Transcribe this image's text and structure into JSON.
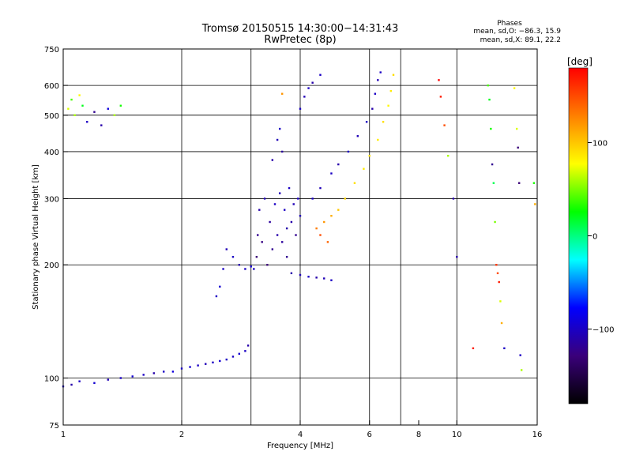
{
  "chart_data": {
    "type": "scatter",
    "title": "Tromsø 20150515 14:30:00−14:31:43",
    "subtitle": "RwPretec (8p)",
    "stats_title": "Phases",
    "stats_line1": "mean, sd,O: −86.3, 15.9",
    "stats_line2": "mean, sd,X:  89.1, 22.2",
    "xlabel": "Frequency [MHz]",
    "ylabel": "Stationary phase Virtual Height [km]",
    "x_scale": "log",
    "y_scale": "log",
    "xlim": [
      1,
      16
    ],
    "ylim": [
      75,
      750
    ],
    "x_ticks": [
      1,
      2,
      4,
      6,
      8,
      10,
      16
    ],
    "x_tick_labels": [
      "1",
      "2",
      "4",
      "6",
      "8",
      "10",
      "16"
    ],
    "y_ticks": [
      75,
      100,
      200,
      300,
      400,
      500,
      600,
      750
    ],
    "y_tick_labels": [
      "75",
      "100",
      "200",
      "300",
      "400",
      "500",
      "600",
      "750"
    ],
    "x_grid": [
      2,
      3,
      4,
      6,
      7.2,
      10
    ],
    "y_grid": [
      100,
      200,
      300,
      400,
      500,
      600
    ],
    "colorbar": {
      "label": "[deg]",
      "range": [
        -180,
        180
      ],
      "ticks": [
        100,
        0,
        -100
      ],
      "tick_labels": [
        "100",
        "0",
        "−100"
      ]
    },
    "color_stops": [
      "#000000",
      "#3a007a",
      "#0000ff",
      "#00ffff",
      "#00ff00",
      "#ffff00",
      "#ff8000",
      "#ff0000"
    ],
    "series": [
      {
        "points": [
          [
            1.0,
            95,
            -100
          ],
          [
            1.05,
            96,
            -110
          ],
          [
            1.1,
            98,
            -100
          ],
          [
            1.2,
            97,
            -95
          ],
          [
            1.3,
            99,
            -105
          ],
          [
            1.4,
            100,
            -100
          ],
          [
            1.5,
            101,
            -95
          ],
          [
            1.6,
            102,
            -100
          ],
          [
            1.7,
            103,
            -110
          ],
          [
            1.8,
            104,
            -100
          ],
          [
            1.9,
            104,
            -90
          ],
          [
            2.0,
            106,
            -100
          ],
          [
            2.1,
            107,
            -95
          ],
          [
            2.2,
            108,
            -100
          ],
          [
            2.3,
            109,
            -105
          ],
          [
            2.4,
            110,
            -100
          ],
          [
            2.5,
            111,
            -95
          ],
          [
            2.6,
            112,
            -100
          ],
          [
            2.7,
            114,
            -100
          ],
          [
            2.8,
            116,
            -95
          ],
          [
            2.9,
            118,
            -100
          ],
          [
            2.95,
            122,
            -110
          ]
        ]
      },
      {
        "points": [
          [
            1.03,
            520,
            70
          ],
          [
            1.05,
            550,
            40
          ],
          [
            1.07,
            500,
            60
          ],
          [
            1.1,
            565,
            80
          ],
          [
            1.12,
            530,
            20
          ],
          [
            1.15,
            480,
            -100
          ],
          [
            1.2,
            510,
            -120
          ],
          [
            1.25,
            470,
            -110
          ],
          [
            1.3,
            520,
            -90
          ],
          [
            1.35,
            500,
            60
          ],
          [
            1.4,
            530,
            30
          ]
        ]
      },
      {
        "points": [
          [
            2.45,
            165,
            -100
          ],
          [
            2.5,
            175,
            -95
          ],
          [
            2.55,
            195,
            -100
          ],
          [
            2.6,
            220,
            -105
          ],
          [
            2.7,
            210,
            -100
          ],
          [
            2.8,
            200,
            -110
          ],
          [
            2.9,
            195,
            -100
          ],
          [
            3.0,
            198,
            -95
          ],
          [
            3.05,
            195,
            -100
          ]
        ]
      },
      {
        "points": [
          [
            3.1,
            210,
            -130
          ],
          [
            3.12,
            240,
            -120
          ],
          [
            3.15,
            280,
            -110
          ],
          [
            3.2,
            230,
            -125
          ],
          [
            3.25,
            300,
            -105
          ],
          [
            3.3,
            200,
            -130
          ],
          [
            3.35,
            260,
            -115
          ],
          [
            3.4,
            220,
            -120
          ],
          [
            3.45,
            290,
            -100
          ],
          [
            3.5,
            240,
            -110
          ],
          [
            3.55,
            310,
            -105
          ],
          [
            3.6,
            230,
            -115
          ],
          [
            3.65,
            280,
            -100
          ],
          [
            3.7,
            250,
            -110
          ],
          [
            3.75,
            320,
            -100
          ],
          [
            3.8,
            260,
            -110
          ],
          [
            3.85,
            290,
            -105
          ],
          [
            3.9,
            240,
            -120
          ],
          [
            3.95,
            300,
            -100
          ],
          [
            4.0,
            270,
            -105
          ]
        ]
      },
      {
        "points": [
          [
            3.4,
            380,
            -110
          ],
          [
            3.5,
            430,
            -105
          ],
          [
            3.55,
            460,
            -100
          ],
          [
            3.6,
            400,
            -115
          ],
          [
            3.7,
            210,
            -120
          ],
          [
            3.8,
            190,
            -110
          ],
          [
            4.0,
            188,
            -105
          ],
          [
            4.2,
            186,
            -100
          ],
          [
            4.4,
            185,
            -110
          ],
          [
            4.6,
            184,
            -105
          ],
          [
            4.8,
            182,
            -100
          ]
        ]
      },
      {
        "points": [
          [
            4.0,
            520,
            -100
          ],
          [
            4.1,
            560,
            -105
          ],
          [
            4.2,
            590,
            -100
          ],
          [
            4.3,
            610,
            -110
          ],
          [
            4.5,
            640,
            -100
          ],
          [
            3.6,
            570,
            120
          ]
        ]
      },
      {
        "points": [
          [
            4.3,
            300,
            -100
          ],
          [
            4.5,
            320,
            -105
          ],
          [
            4.8,
            350,
            -100
          ],
          [
            5.0,
            370,
            -110
          ],
          [
            5.3,
            400,
            -100
          ],
          [
            5.6,
            440,
            -105
          ],
          [
            5.9,
            480,
            -100
          ],
          [
            6.1,
            520,
            -110
          ],
          [
            6.2,
            570,
            -100
          ],
          [
            6.3,
            620,
            -105
          ],
          [
            6.4,
            650,
            -100
          ]
        ]
      },
      {
        "points": [
          [
            4.4,
            250,
            130
          ],
          [
            4.5,
            240,
            150
          ],
          [
            4.6,
            260,
            120
          ],
          [
            4.7,
            230,
            140
          ],
          [
            4.8,
            270,
            110
          ],
          [
            5.0,
            280,
            100
          ],
          [
            5.2,
            300,
            95
          ],
          [
            5.5,
            330,
            90
          ],
          [
            5.8,
            360,
            85
          ],
          [
            6.0,
            390,
            90
          ],
          [
            6.3,
            430,
            85
          ],
          [
            6.5,
            480,
            90
          ],
          [
            6.7,
            530,
            80
          ],
          [
            6.8,
            580,
            85
          ],
          [
            6.9,
            640,
            90
          ]
        ]
      },
      {
        "points": [
          [
            9.0,
            620,
            180
          ],
          [
            9.1,
            560,
            170
          ],
          [
            9.3,
            470,
            150
          ],
          [
            9.5,
            390,
            60
          ],
          [
            9.8,
            300,
            -110
          ],
          [
            10.0,
            210,
            -110
          ],
          [
            11.0,
            120,
            170
          ],
          [
            12.0,
            600,
            40
          ],
          [
            12.1,
            550,
            20
          ],
          [
            12.2,
            460,
            30
          ],
          [
            12.3,
            370,
            -120
          ],
          [
            12.4,
            330,
            10
          ],
          [
            12.5,
            260,
            50
          ],
          [
            12.6,
            200,
            160
          ],
          [
            12.7,
            190,
            150
          ],
          [
            12.8,
            180,
            170
          ],
          [
            12.9,
            160,
            70
          ],
          [
            13.0,
            140,
            110
          ],
          [
            13.2,
            120,
            -100
          ],
          [
            14.0,
            590,
            80
          ],
          [
            14.2,
            460,
            70
          ],
          [
            14.3,
            410,
            -130
          ],
          [
            14.4,
            330,
            -130
          ],
          [
            14.5,
            115,
            -100
          ],
          [
            14.6,
            105,
            60
          ],
          [
            15.7,
            330,
            30
          ],
          [
            15.8,
            290,
            110
          ]
        ]
      }
    ]
  }
}
